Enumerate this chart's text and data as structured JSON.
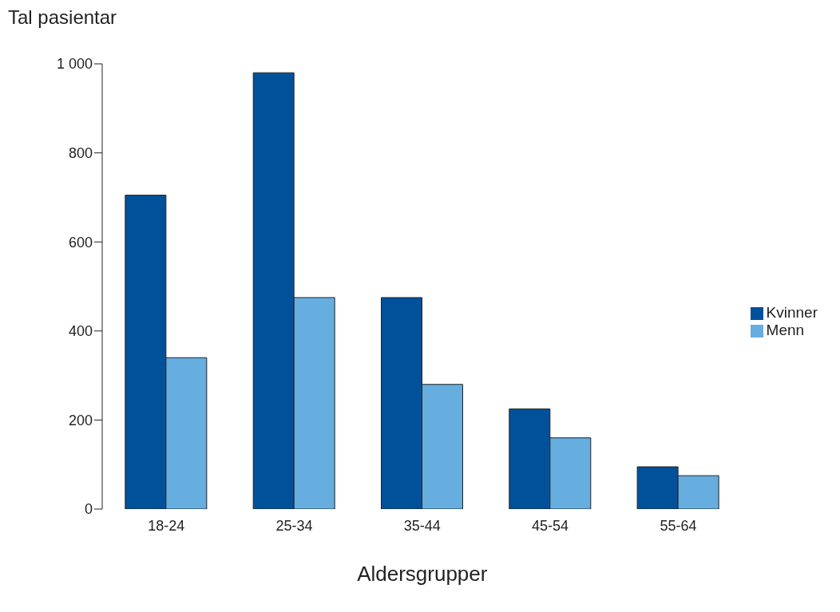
{
  "chart_data": {
    "type": "bar",
    "ylabel": "Tal pasientar",
    "xlabel": "Aldersgrupper",
    "categories": [
      "18-24",
      "25-34",
      "35-44",
      "45-54",
      "55-64"
    ],
    "series": [
      {
        "name": "Kvinner",
        "color": "#00519a",
        "values": [
          705,
          980,
          475,
          225,
          95
        ]
      },
      {
        "name": "Menn",
        "color": "#66aee0",
        "values": [
          340,
          475,
          280,
          160,
          75
        ]
      }
    ],
    "ylim": [
      0,
      1000
    ],
    "yticks": [
      0,
      200,
      400,
      600,
      800,
      {
        "value": 1000,
        "label": "1 000"
      }
    ],
    "legend": "right",
    "grid": false
  }
}
